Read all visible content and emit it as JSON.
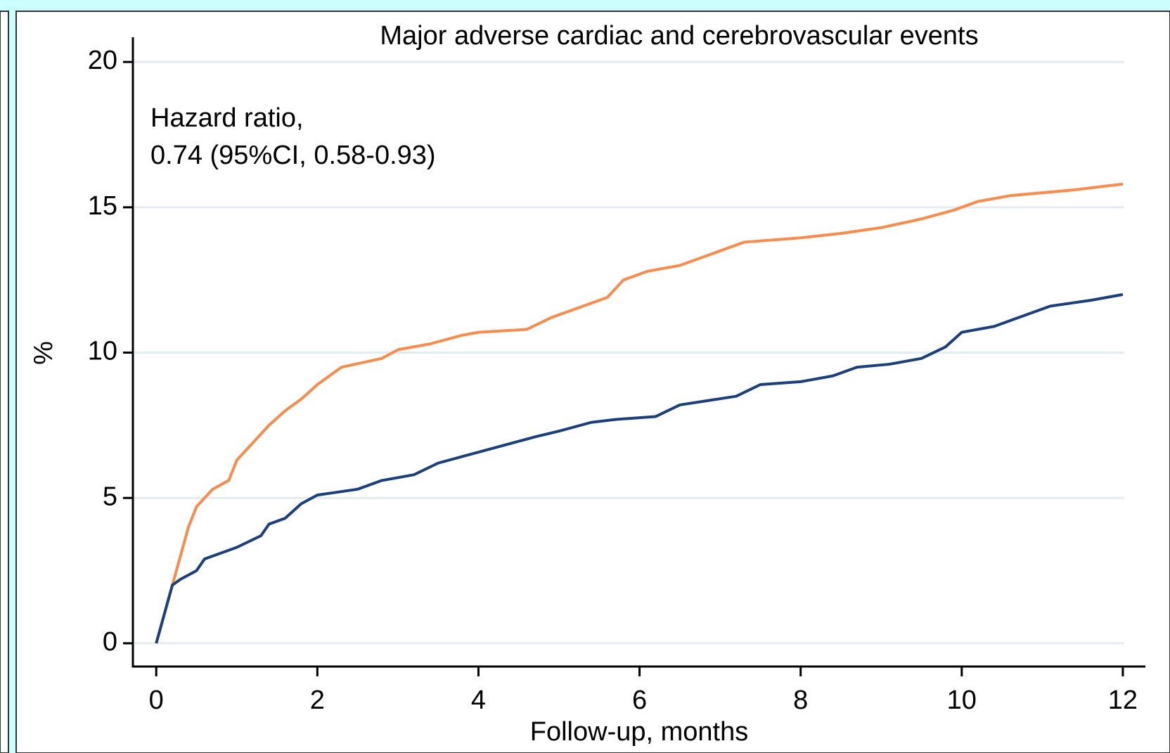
{
  "chart_data": {
    "type": "line",
    "title": "Major adverse cardiac and cerebrovascular events",
    "annotation": [
      "Hazard ratio,",
      "0.74 (95%CI, 0.58-0.93)"
    ],
    "xlabel": "Follow-up, months",
    "ylabel": "%",
    "xlim": [
      -0.29,
      12.28
    ],
    "ylim": [
      -0.8,
      20.85
    ],
    "xticks": [
      0,
      2,
      4,
      6,
      8,
      10,
      12
    ],
    "yticks": [
      0,
      5,
      10,
      15,
      20
    ],
    "grid": true,
    "series": [
      {
        "color": "#f98b4c",
        "x": [
          0,
          0.1,
          0.2,
          0.3,
          0.4,
          0.5,
          0.7,
          0.9,
          1.0,
          1.2,
          1.4,
          1.6,
          1.8,
          2.0,
          2.3,
          2.8,
          3.0,
          3.4,
          3.8,
          4.0,
          4.6,
          4.9,
          5.3,
          5.6,
          5.8,
          6.1,
          6.5,
          6.9,
          7.3,
          8.0,
          8.5,
          9.0,
          9.5,
          9.9,
          10.2,
          10.6,
          11.4,
          12.0
        ],
        "values": [
          0,
          1,
          2,
          3,
          4,
          4.7,
          5.3,
          5.6,
          6.3,
          6.9,
          7.5,
          8,
          8.4,
          8.9,
          9.5,
          9.8,
          10.1,
          10.3,
          10.6,
          10.7,
          10.8,
          11.2,
          11.6,
          11.9,
          12.5,
          12.8,
          13,
          13.4,
          13.8,
          13.95,
          14.1,
          14.3,
          14.6,
          14.9,
          15.2,
          15.4,
          15.6,
          15.8
        ]
      },
      {
        "color": "#1a3f7a",
        "x": [
          0,
          0.1,
          0.2,
          0.3,
          0.5,
          0.6,
          0.8,
          1.0,
          1.3,
          1.4,
          1.6,
          1.8,
          2.0,
          2.5,
          2.8,
          3.2,
          3.5,
          3.9,
          4.3,
          4.7,
          5.0,
          5.4,
          5.7,
          6.2,
          6.5,
          7.2,
          7.5,
          8.0,
          8.4,
          8.7,
          9.1,
          9.5,
          9.8,
          10.0,
          10.4,
          10.7,
          11.1,
          11.6,
          12.0
        ],
        "values": [
          0,
          1,
          2,
          2.2,
          2.5,
          2.9,
          3.1,
          3.3,
          3.7,
          4.1,
          4.3,
          4.8,
          5.1,
          5.3,
          5.6,
          5.8,
          6.2,
          6.5,
          6.8,
          7.1,
          7.3,
          7.6,
          7.7,
          7.8,
          8.2,
          8.5,
          8.9,
          9,
          9.2,
          9.5,
          9.6,
          9.8,
          10.2,
          10.7,
          10.9,
          11.2,
          11.6,
          11.8,
          12
        ]
      }
    ]
  }
}
